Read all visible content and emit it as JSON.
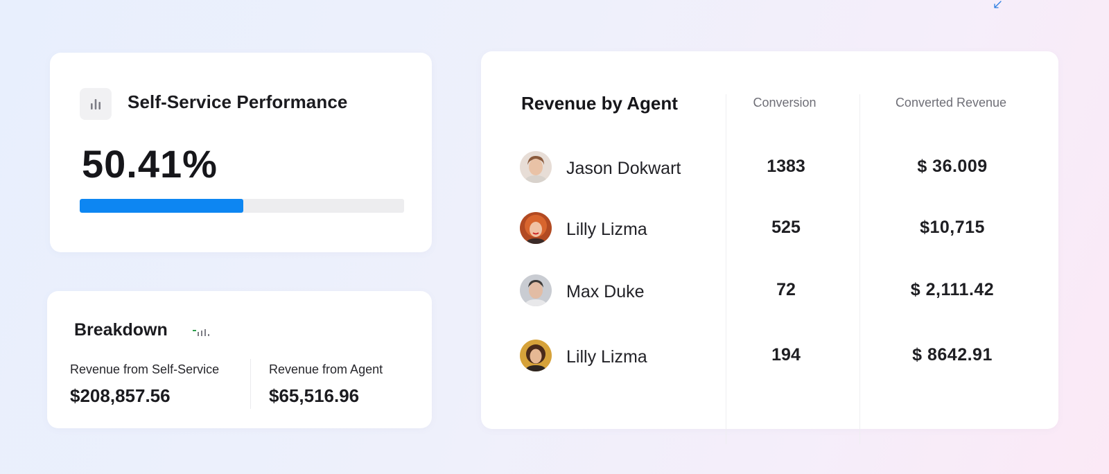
{
  "performance": {
    "title": "Self-Service Performance",
    "value": "50.41%",
    "progress_percent": 50.41,
    "progress_color": "#0d86f2"
  },
  "breakdown": {
    "title": "Breakdown",
    "self_service": {
      "label": "Revenue from Self-Service",
      "amount": "$208,857.56"
    },
    "agent": {
      "label": "Revenue from Agent",
      "amount": "$65,516.96"
    }
  },
  "agents_table": {
    "title": "Revenue by Agent",
    "columns": {
      "conversion": "Conversion",
      "revenue": "Converted Revenue"
    },
    "rows": [
      {
        "name": "Jason Dokwart",
        "conversion": "1383",
        "revenue": "$ 36.009",
        "avatar": "avatar-photo"
      },
      {
        "name": "Lilly Lizma",
        "conversion": "525",
        "revenue": "$10,715",
        "avatar": "avatar-photo"
      },
      {
        "name": "Max Duke",
        "conversion": "72",
        "revenue": "$ 2,111.42",
        "avatar": "avatar-photo"
      },
      {
        "name": "Lilly Lizma",
        "conversion": "194",
        "revenue": "$ 8642.91",
        "avatar": "avatar-photo"
      }
    ]
  },
  "colors": {
    "accent": "#0d86f2",
    "card_bg": "#ffffff",
    "mini_chart_green": "#2e9e4d"
  }
}
